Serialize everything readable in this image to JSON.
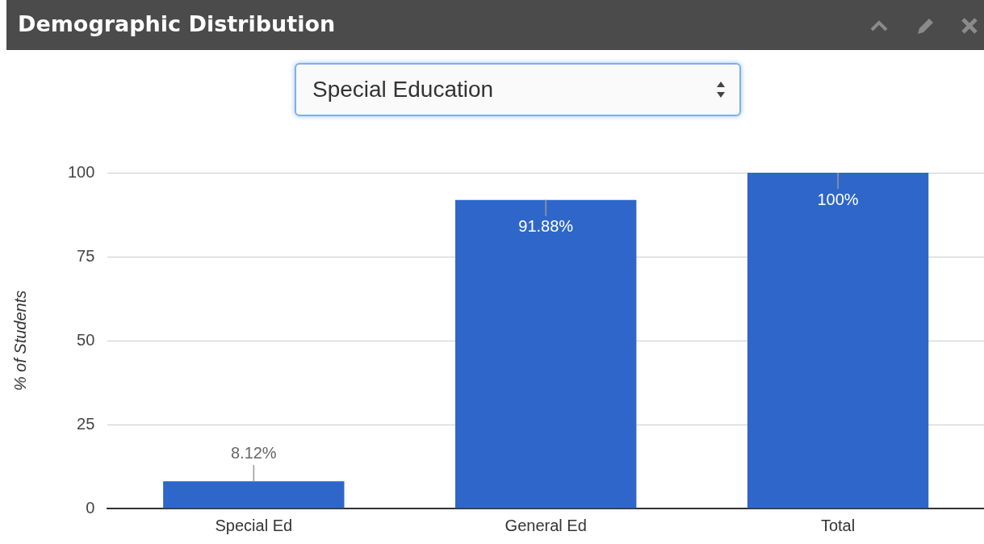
{
  "chart_data": {
    "type": "bar",
    "title": "Demographic Distribution",
    "subtitle": "Special Education",
    "ylabel": "% of Students",
    "categories": [
      "Special Ed",
      "General Ed",
      "Total"
    ],
    "values": [
      8.12,
      91.88,
      100
    ],
    "color": "#2e67c9",
    "value_labels": [
      "8.12%",
      "91.88%",
      "100%"
    ],
    "ylim": [
      0,
      100
    ],
    "yticks": [
      0,
      25,
      50,
      75,
      100
    ],
    "grid": "y",
    "legend": false
  }
}
